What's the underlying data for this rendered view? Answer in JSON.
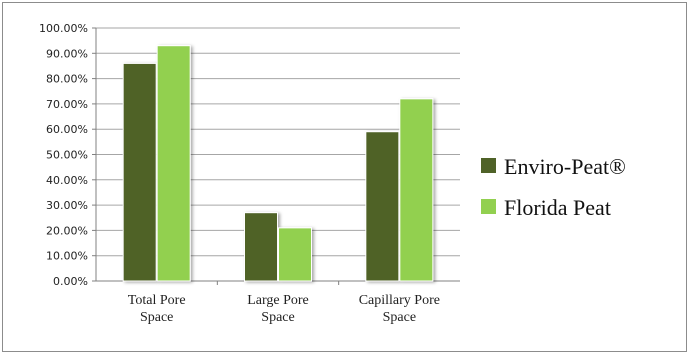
{
  "chart_data": {
    "type": "bar",
    "title": "",
    "xlabel": "",
    "ylabel": "",
    "categories": [
      [
        "Total Pore",
        "Space"
      ],
      [
        "Large Pore",
        "Space"
      ],
      [
        "Capillary Pore",
        "Space"
      ]
    ],
    "series": [
      {
        "name": "Enviro-Peat®",
        "values": [
          0.86,
          0.27,
          0.59
        ],
        "color": "#4f6228"
      },
      {
        "name": "Florida Peat",
        "values": [
          0.93,
          0.21,
          0.72
        ],
        "color": "#92d050"
      }
    ],
    "ylim": [
      0,
      1.0
    ],
    "yticks": [
      "0.00%",
      "10.00%",
      "20.00%",
      "30.00%",
      "40.00%",
      "50.00%",
      "60.00%",
      "70.00%",
      "80.00%",
      "90.00%",
      "100.00%"
    ],
    "grid": true,
    "legend_position": "right"
  }
}
